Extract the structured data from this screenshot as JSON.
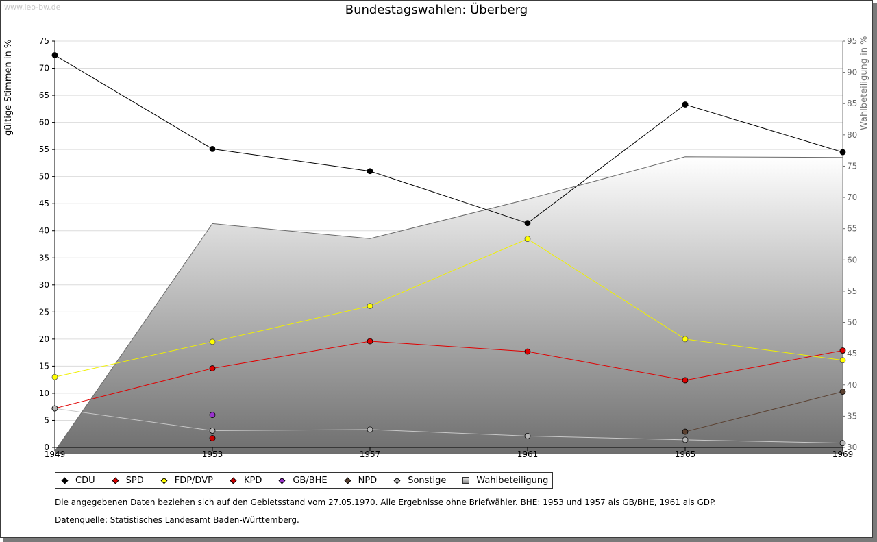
{
  "watermark": "www.leo-bw.de",
  "chart_data": {
    "type": "line",
    "title": "Bundestagswahlen: Überberg",
    "ylabel": "gültige Stimmen in %",
    "y2label": "Wahlbeteiligung in %",
    "x": [
      "1949",
      "1953",
      "1957",
      "1961",
      "1965",
      "1969"
    ],
    "ylim": [
      0,
      75
    ],
    "yticks": [
      0,
      5,
      10,
      15,
      20,
      25,
      30,
      35,
      40,
      45,
      50,
      55,
      60,
      65,
      70,
      75
    ],
    "y2lim": [
      30,
      95
    ],
    "y2ticks": [
      30,
      35,
      40,
      45,
      50,
      55,
      60,
      65,
      70,
      75,
      80,
      85,
      90,
      95
    ],
    "grid": true,
    "legend_position": "bottom",
    "series": [
      {
        "name": "CDU",
        "color": "#000000",
        "values": [
          72.4,
          55.1,
          51.0,
          41.4,
          63.3,
          54.5
        ]
      },
      {
        "name": "SPD",
        "color": "#e00000",
        "values": [
          7.2,
          14.6,
          19.6,
          17.7,
          12.4,
          17.9
        ]
      },
      {
        "name": "FDP/DVP",
        "color": "#ffff00",
        "values": [
          13.0,
          19.5,
          26.1,
          38.5,
          20.0,
          16.1
        ]
      },
      {
        "name": "KPD",
        "color": "#cc0000",
        "values": [
          null,
          1.7,
          null,
          null,
          null,
          null
        ]
      },
      {
        "name": "GB/BHE",
        "color": "#9933cc",
        "values": [
          null,
          6.0,
          null,
          null,
          null,
          null
        ]
      },
      {
        "name": "NPD",
        "color": "#5a4030",
        "values": [
          null,
          null,
          null,
          null,
          2.9,
          10.3
        ]
      },
      {
        "name": "Sonstige",
        "color": "#b4b4b4",
        "values": [
          7.2,
          3.1,
          3.3,
          2.1,
          1.4,
          0.8
        ]
      }
    ],
    "area": {
      "name": "Wahlbeteiligung",
      "axis": "right",
      "values": [
        29.4,
        65.8,
        63.4,
        69.7,
        76.5,
        76.4
      ]
    }
  },
  "legend": [
    {
      "label": "CDU",
      "color": "#000000"
    },
    {
      "label": "SPD",
      "color": "#e00000"
    },
    {
      "label": "FDP/DVP",
      "color": "#ffff00"
    },
    {
      "label": "KPD",
      "color": "#cc0000"
    },
    {
      "label": "GB/BHE",
      "color": "#9933cc"
    },
    {
      "label": "NPD",
      "color": "#5a4030"
    },
    {
      "label": "Sonstige",
      "color": "#b4b4b4"
    },
    {
      "label": "Wahlbeteiligung",
      "color": "#aaaaaa"
    }
  ],
  "notes": {
    "line1": "Die angegebenen Daten beziehen sich auf den Gebietsstand vom 27.05.1970. Alle Ergebnisse ohne Briefwähler. BHE: 1953 und 1957 als GB/BHE, 1961 als GDP.",
    "line2": "Datenquelle: Statistisches Landesamt Baden-Württemberg."
  }
}
